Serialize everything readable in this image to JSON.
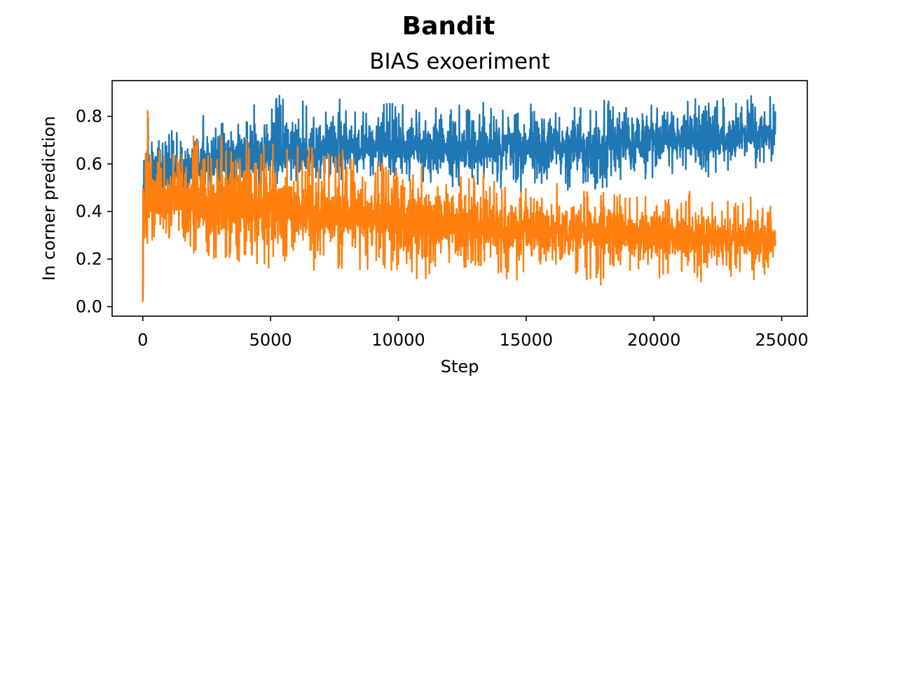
{
  "figure": {
    "suptitle": "Bandit"
  },
  "chart_data": {
    "type": "line",
    "title": "BIAS exoeriment",
    "xlabel": "Step",
    "ylabel": "In corner prediction",
    "xlim": [
      -1200,
      26000
    ],
    "ylim": [
      -0.04,
      0.95
    ],
    "xticks": [
      0,
      5000,
      10000,
      15000,
      20000,
      25000
    ],
    "xtick_labels": [
      "0",
      "5000",
      "10000",
      "15000",
      "20000",
      "25000"
    ],
    "yticks": [
      0.0,
      0.2,
      0.4,
      0.6,
      0.8
    ],
    "ytick_labels": [
      "0.0",
      "0.2",
      "0.4",
      "0.6",
      "0.8"
    ],
    "grid": false,
    "legend": "none",
    "series": [
      {
        "color": "#1f77b4",
        "x": [
          0,
          100,
          200,
          300,
          500,
          800,
          1000,
          1500,
          2000,
          2500,
          3000,
          3500,
          4000,
          4500,
          5000,
          5500,
          6000,
          6500,
          7000,
          7500,
          8000,
          8500,
          9000,
          9500,
          10000,
          10500,
          11000,
          11500,
          12000,
          12500,
          13000,
          13500,
          14000,
          14500,
          15000,
          15500,
          16000,
          16500,
          17000,
          17500,
          18000,
          18500,
          19000,
          19500,
          20000,
          20500,
          21000,
          21500,
          22000,
          22500,
          23000,
          23500,
          24000,
          24500,
          24750
        ],
        "y_mean": [
          0.45,
          0.5,
          0.52,
          0.55,
          0.56,
          0.57,
          0.57,
          0.58,
          0.58,
          0.59,
          0.6,
          0.6,
          0.61,
          0.62,
          0.63,
          0.64,
          0.64,
          0.65,
          0.65,
          0.66,
          0.66,
          0.67,
          0.67,
          0.67,
          0.67,
          0.67,
          0.66,
          0.66,
          0.66,
          0.66,
          0.66,
          0.66,
          0.66,
          0.66,
          0.66,
          0.67,
          0.67,
          0.67,
          0.67,
          0.68,
          0.68,
          0.68,
          0.69,
          0.69,
          0.7,
          0.7,
          0.7,
          0.71,
          0.71,
          0.71,
          0.71,
          0.72,
          0.72,
          0.72,
          0.72
        ],
        "y_min": [
          0.0,
          0.3,
          0.35,
          0.38,
          0.4,
          0.42,
          0.42,
          0.42,
          0.44,
          0.44,
          0.45,
          0.46,
          0.47,
          0.48,
          0.48,
          0.5,
          0.5,
          0.51,
          0.52,
          0.53,
          0.53,
          0.54,
          0.54,
          0.55,
          0.55,
          0.52,
          0.5,
          0.5,
          0.5,
          0.48,
          0.5,
          0.49,
          0.46,
          0.48,
          0.46,
          0.48,
          0.5,
          0.48,
          0.5,
          0.49,
          0.5,
          0.5,
          0.52,
          0.52,
          0.54,
          0.55,
          0.56,
          0.56,
          0.54,
          0.56,
          0.57,
          0.58,
          0.58,
          0.6,
          0.6
        ],
        "y_max": [
          0.7,
          0.75,
          0.84,
          0.72,
          0.7,
          0.72,
          0.72,
          0.8,
          0.8,
          0.82,
          0.82,
          0.82,
          0.84,
          0.86,
          0.88,
          0.9,
          0.88,
          0.86,
          0.86,
          0.88,
          0.88,
          0.88,
          0.88,
          0.88,
          0.87,
          0.87,
          0.86,
          0.86,
          0.86,
          0.86,
          0.86,
          0.86,
          0.86,
          0.86,
          0.86,
          0.86,
          0.86,
          0.86,
          0.86,
          0.87,
          0.87,
          0.87,
          0.87,
          0.87,
          0.87,
          0.88,
          0.88,
          0.91,
          0.88,
          0.88,
          0.88,
          0.88,
          0.89,
          0.9,
          0.86
        ]
      },
      {
        "color": "#ff7f0e",
        "x": [
          0,
          100,
          200,
          300,
          500,
          800,
          1000,
          1500,
          2000,
          2500,
          3000,
          3500,
          4000,
          4500,
          5000,
          5500,
          6000,
          6500,
          7000,
          7500,
          8000,
          8500,
          9000,
          9500,
          10000,
          10500,
          11000,
          11500,
          12000,
          12500,
          13000,
          13500,
          14000,
          14500,
          15000,
          15500,
          16000,
          16500,
          17000,
          17500,
          18000,
          18500,
          19000,
          19500,
          20000,
          20500,
          21000,
          21500,
          22000,
          22500,
          23000,
          23500,
          24000,
          24500,
          24750
        ],
        "y_mean": [
          0.35,
          0.42,
          0.45,
          0.46,
          0.45,
          0.45,
          0.44,
          0.44,
          0.44,
          0.43,
          0.43,
          0.42,
          0.42,
          0.41,
          0.41,
          0.4,
          0.4,
          0.39,
          0.39,
          0.38,
          0.38,
          0.37,
          0.37,
          0.36,
          0.36,
          0.35,
          0.35,
          0.35,
          0.34,
          0.34,
          0.34,
          0.33,
          0.33,
          0.33,
          0.33,
          0.32,
          0.32,
          0.32,
          0.32,
          0.31,
          0.31,
          0.31,
          0.31,
          0.3,
          0.3,
          0.3,
          0.3,
          0.29,
          0.29,
          0.29,
          0.28,
          0.28,
          0.28,
          0.28,
          0.28
        ],
        "y_min": [
          0.0,
          0.25,
          0.27,
          0.26,
          0.25,
          0.22,
          0.22,
          0.2,
          0.2,
          0.09,
          0.18,
          0.2,
          0.17,
          0.16,
          0.15,
          0.17,
          0.16,
          0.13,
          0.15,
          0.15,
          0.17,
          0.14,
          0.13,
          0.15,
          0.11,
          0.12,
          0.11,
          0.1,
          0.14,
          0.14,
          0.15,
          0.14,
          0.13,
          0.1,
          0.14,
          0.13,
          0.14,
          0.13,
          0.12,
          0.1,
          0.09,
          0.14,
          0.12,
          0.13,
          0.1,
          0.13,
          0.11,
          0.1,
          0.07,
          0.11,
          0.12,
          0.1,
          0.1,
          0.11,
          0.18
        ],
        "y_max": [
          0.69,
          0.72,
          0.84,
          0.7,
          0.66,
          0.65,
          0.66,
          0.76,
          0.77,
          0.75,
          0.76,
          0.73,
          0.72,
          0.7,
          0.7,
          0.71,
          0.7,
          0.68,
          0.67,
          0.65,
          0.69,
          0.63,
          0.62,
          0.62,
          0.6,
          0.58,
          0.6,
          0.63,
          0.55,
          0.58,
          0.6,
          0.56,
          0.52,
          0.53,
          0.5,
          0.49,
          0.52,
          0.52,
          0.51,
          0.5,
          0.53,
          0.5,
          0.49,
          0.48,
          0.48,
          0.48,
          0.47,
          0.49,
          0.45,
          0.45,
          0.45,
          0.46,
          0.47,
          0.45,
          0.4
        ]
      }
    ]
  }
}
